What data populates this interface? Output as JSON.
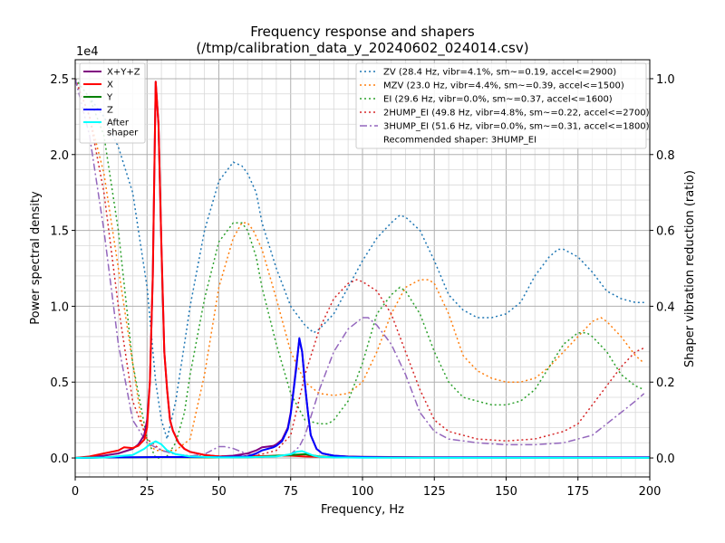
{
  "chart_data": {
    "type": "line",
    "title": "Frequency response and shapers",
    "subtitle": "(/tmp/calibration_data_y_20240602_024014.csv)",
    "xlabel": "Frequency, Hz",
    "ylabel": "Power spectral density",
    "y2label": "Shaper vibration reduction (ratio)",
    "y_offset_label": "1e4",
    "xlim": [
      0,
      200
    ],
    "ylim": [
      -1250,
      26250
    ],
    "y2lim": [
      -0.05,
      1.05
    ],
    "xticks": [
      0,
      25,
      50,
      75,
      100,
      125,
      150,
      175,
      200
    ],
    "yticks": [
      0,
      0.5,
      1.0,
      1.5,
      2.0,
      2.5
    ],
    "y2ticks": [
      0.0,
      0.2,
      0.4,
      0.6,
      0.8,
      1.0
    ],
    "grid": true,
    "psd_legend_placement": "top-left",
    "shaper_legend_placement": "top-right",
    "recommended": "Recommended shaper: 3HUMP_EI",
    "psd_series": [
      {
        "name": "X+Y+Z",
        "color": "#800080",
        "x": [
          0,
          5,
          10,
          15,
          20,
          22,
          24,
          25,
          26,
          27,
          28,
          29,
          30,
          31,
          32,
          33,
          34,
          36,
          38,
          40,
          45,
          50,
          55,
          60,
          63,
          65,
          67,
          69,
          70,
          72,
          74,
          75,
          76,
          77,
          78,
          79,
          80,
          81,
          82,
          84,
          86,
          90,
          95,
          100,
          110,
          120,
          150,
          180,
          200
        ],
        "values": [
          0,
          50,
          150,
          300,
          600,
          900,
          1500,
          2500,
          5000,
          12000,
          24800,
          22000,
          14000,
          7000,
          4500,
          2500,
          1800,
          1000,
          600,
          400,
          200,
          100,
          150,
          300,
          500,
          700,
          750,
          800,
          900,
          1200,
          2000,
          3000,
          4500,
          6200,
          7800,
          7000,
          4800,
          3000,
          1500,
          600,
          300,
          150,
          100,
          80,
          60,
          50,
          50,
          50,
          50
        ]
      },
      {
        "name": "X",
        "color": "#ff0000",
        "x": [
          0,
          5,
          10,
          15,
          17,
          20,
          22,
          24,
          25,
          26,
          27,
          28,
          29,
          30,
          31,
          32,
          33,
          34,
          36,
          38,
          40,
          45,
          50,
          55,
          60,
          65,
          70,
          75,
          80,
          90,
          100,
          120,
          150,
          180,
          200
        ],
        "values": [
          0,
          100,
          300,
          500,
          700,
          650,
          800,
          1200,
          2000,
          5000,
          12000,
          24800,
          22000,
          14000,
          7000,
          4500,
          2500,
          1800,
          1000,
          600,
          400,
          200,
          100,
          80,
          100,
          120,
          150,
          150,
          100,
          60,
          50,
          40,
          30,
          30,
          30
        ]
      },
      {
        "name": "Y",
        "color": "#008000",
        "x": [
          0,
          5,
          10,
          20,
          30,
          40,
          50,
          60,
          65,
          70,
          75,
          80,
          85,
          90,
          100,
          150,
          200
        ],
        "values": [
          0,
          20,
          30,
          40,
          60,
          50,
          40,
          50,
          80,
          150,
          200,
          250,
          100,
          50,
          30,
          20,
          20
        ]
      },
      {
        "name": "Z",
        "color": "#0000ff",
        "x": [
          0,
          5,
          10,
          20,
          30,
          40,
          50,
          60,
          63,
          65,
          67,
          69,
          70,
          72,
          74,
          75,
          76,
          77,
          78,
          79,
          80,
          81,
          82,
          84,
          86,
          90,
          95,
          100,
          110,
          120,
          150,
          180,
          200
        ],
        "values": [
          0,
          20,
          40,
          50,
          60,
          60,
          60,
          100,
          300,
          500,
          600,
          700,
          800,
          1100,
          1900,
          2900,
          4400,
          6000,
          7900,
          7000,
          4800,
          3000,
          1500,
          600,
          300,
          150,
          80,
          60,
          40,
          30,
          30,
          30,
          30
        ]
      },
      {
        "name": "After\nshaper",
        "color": "#00ffff",
        "x": [
          0,
          10,
          20,
          24,
          26,
          28,
          30,
          32,
          35,
          40,
          50,
          60,
          70,
          75,
          77,
          79,
          81,
          83,
          85,
          90,
          100,
          150,
          200
        ],
        "values": [
          0,
          30,
          200,
          600,
          900,
          1100,
          900,
          500,
          250,
          100,
          40,
          50,
          100,
          250,
          400,
          450,
          300,
          150,
          80,
          40,
          20,
          10,
          10
        ]
      }
    ],
    "shaper_series": [
      {
        "name": "ZV (28.4 Hz, vibr=4.1%, sm~=0.19, accel<=2900)",
        "color": "#1f77b4",
        "dash": "2,3",
        "x": [
          0,
          5,
          10,
          15,
          20,
          25,
          28,
          30,
          32,
          35,
          38,
          40,
          45,
          50,
          55,
          58,
          60,
          63,
          65,
          70,
          75,
          80,
          83,
          85,
          90,
          95,
          100,
          105,
          110,
          113,
          115,
          120,
          125,
          130,
          135,
          140,
          143,
          145,
          150,
          155,
          160,
          165,
          168,
          170,
          175,
          180,
          185,
          190,
          195,
          198
        ],
        "values": [
          1.0,
          0.95,
          0.9,
          0.82,
          0.7,
          0.45,
          0.2,
          0.1,
          0.05,
          0.15,
          0.3,
          0.4,
          0.6,
          0.73,
          0.78,
          0.77,
          0.75,
          0.7,
          0.62,
          0.5,
          0.4,
          0.35,
          0.33,
          0.34,
          0.38,
          0.45,
          0.52,
          0.58,
          0.62,
          0.64,
          0.635,
          0.6,
          0.52,
          0.43,
          0.39,
          0.37,
          0.37,
          0.37,
          0.38,
          0.41,
          0.48,
          0.53,
          0.55,
          0.55,
          0.53,
          0.49,
          0.44,
          0.42,
          0.41,
          0.41
        ]
      },
      {
        "name": "MZV (23.0 Hz, vibr=4.4%, sm~=0.39, accel<=1500)",
        "color": "#ff7f0e",
        "dash": "2,3",
        "x": [
          0,
          5,
          10,
          15,
          20,
          23,
          25,
          28,
          30,
          35,
          40,
          45,
          50,
          55,
          58,
          60,
          62,
          65,
          70,
          75,
          80,
          85,
          90,
          95,
          100,
          105,
          110,
          115,
          120,
          123,
          125,
          130,
          135,
          140,
          145,
          150,
          155,
          160,
          165,
          170,
          175,
          180,
          183,
          185,
          190,
          195,
          198
        ],
        "values": [
          1.0,
          0.9,
          0.75,
          0.5,
          0.25,
          0.1,
          0.04,
          0.02,
          0.02,
          0.02,
          0.05,
          0.22,
          0.45,
          0.58,
          0.62,
          0.62,
          0.6,
          0.55,
          0.42,
          0.28,
          0.2,
          0.17,
          0.165,
          0.17,
          0.2,
          0.28,
          0.38,
          0.45,
          0.47,
          0.47,
          0.46,
          0.38,
          0.27,
          0.23,
          0.21,
          0.2,
          0.2,
          0.21,
          0.24,
          0.28,
          0.32,
          0.36,
          0.37,
          0.36,
          0.32,
          0.27,
          0.25
        ]
      },
      {
        "name": "EI (29.6 Hz, vibr=0.0%, sm~=0.37, accel<=1600)",
        "color": "#2ca02c",
        "dash": "2,3",
        "x": [
          0,
          5,
          10,
          15,
          20,
          25,
          28,
          30,
          32,
          35,
          38,
          40,
          45,
          50,
          55,
          58,
          60,
          63,
          65,
          70,
          75,
          80,
          85,
          88,
          90,
          95,
          100,
          105,
          110,
          113,
          115,
          120,
          125,
          130,
          135,
          140,
          145,
          150,
          155,
          160,
          165,
          170,
          175,
          178,
          180,
          185,
          190,
          195,
          198
        ],
        "values": [
          1.0,
          0.95,
          0.85,
          0.6,
          0.25,
          0.05,
          0.0,
          0.0,
          0.005,
          0.04,
          0.12,
          0.22,
          0.42,
          0.57,
          0.62,
          0.62,
          0.6,
          0.53,
          0.45,
          0.3,
          0.17,
          0.1,
          0.09,
          0.09,
          0.1,
          0.15,
          0.25,
          0.38,
          0.43,
          0.45,
          0.44,
          0.38,
          0.28,
          0.2,
          0.16,
          0.15,
          0.14,
          0.14,
          0.15,
          0.18,
          0.24,
          0.3,
          0.33,
          0.33,
          0.32,
          0.28,
          0.22,
          0.19,
          0.18
        ]
      },
      {
        "name": "2HUMP_EI (49.8 Hz, vibr=4.8%, sm~=0.22, accel<=2700)",
        "color": "#d62728",
        "dash": "2,3",
        "x": [
          0,
          5,
          10,
          15,
          20,
          25,
          30,
          35,
          40,
          45,
          50,
          55,
          60,
          65,
          70,
          75,
          80,
          85,
          90,
          95,
          98,
          100,
          105,
          110,
          115,
          120,
          125,
          130,
          140,
          150,
          160,
          170,
          175,
          180,
          185,
          190,
          195,
          198
        ],
        "values": [
          1.0,
          0.9,
          0.7,
          0.4,
          0.15,
          0.05,
          0.02,
          0.01,
          0.005,
          0.005,
          0.005,
          0.005,
          0.005,
          0.01,
          0.02,
          0.06,
          0.22,
          0.34,
          0.42,
          0.46,
          0.47,
          0.465,
          0.44,
          0.38,
          0.28,
          0.18,
          0.1,
          0.07,
          0.05,
          0.045,
          0.05,
          0.07,
          0.09,
          0.14,
          0.19,
          0.24,
          0.28,
          0.29
        ]
      },
      {
        "name": "3HUMP_EI (51.6 Hz, vibr=0.0%, sm~=0.31, accel<=1800)",
        "color": "#9467bd",
        "dash": "8,3,2,3",
        "x": [
          0,
          5,
          10,
          15,
          20,
          25,
          30,
          35,
          40,
          45,
          50,
          52,
          55,
          60,
          65,
          70,
          75,
          78,
          80,
          85,
          90,
          95,
          100,
          102,
          105,
          110,
          115,
          120,
          125,
          130,
          140,
          150,
          160,
          170,
          180,
          185,
          190,
          195,
          198
        ],
        "values": [
          1.0,
          0.85,
          0.6,
          0.3,
          0.1,
          0.04,
          0.02,
          0.01,
          0.005,
          0.01,
          0.03,
          0.03,
          0.025,
          0.01,
          0.005,
          0.005,
          0.01,
          0.03,
          0.06,
          0.18,
          0.28,
          0.34,
          0.37,
          0.37,
          0.35,
          0.3,
          0.22,
          0.12,
          0.07,
          0.05,
          0.04,
          0.035,
          0.035,
          0.04,
          0.06,
          0.09,
          0.12,
          0.15,
          0.17
        ]
      }
    ]
  }
}
